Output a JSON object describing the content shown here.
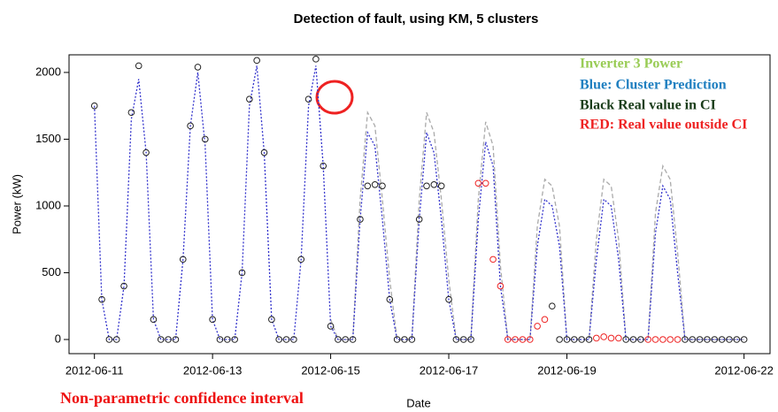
{
  "chart_data": {
    "type": "line",
    "title": "Detection of fault, using KM, 5 clusters",
    "xlabel": "Date",
    "ylabel": "Power (kW)",
    "xlim": [
      -0.43,
      11.44
    ],
    "ylim": [
      -106,
      2132
    ],
    "xticks": [
      {
        "value": 0,
        "label": "2012-06-11"
      },
      {
        "value": 2,
        "label": "2012-06-13"
      },
      {
        "value": 4,
        "label": "2012-06-15"
      },
      {
        "value": 6,
        "label": "2012-06-17"
      },
      {
        "value": 8,
        "label": "2012-06-19"
      },
      {
        "value": 11,
        "label": "2012-06-22"
      }
    ],
    "yticks": [
      0,
      500,
      1000,
      1500,
      2000
    ],
    "annotations": [
      {
        "text": "Inverter 3 Power",
        "color": "#99cc55"
      },
      {
        "text": "Blue: Cluster Prediction",
        "color": "#1f7fc0"
      },
      {
        "text": "Black Real value in CI",
        "color": "#1a3d1a"
      },
      {
        "text": "RED: Real value outside CI",
        "color": "#ee2222"
      },
      {
        "text": "Non-parametric confidence interval",
        "color": "#ee1111"
      }
    ],
    "x": [
      0,
      0.125,
      0.25,
      0.375,
      0.5,
      0.625,
      0.75,
      0.875,
      1,
      1.125,
      1.25,
      1.375,
      1.5,
      1.625,
      1.75,
      1.875,
      2,
      2.125,
      2.25,
      2.375,
      2.5,
      2.625,
      2.75,
      2.875,
      3,
      3.125,
      3.25,
      3.375,
      3.5,
      3.625,
      3.75,
      3.875,
      4,
      4.125,
      4.25,
      4.375,
      4.5,
      4.625,
      4.75,
      4.875,
      5,
      5.125,
      5.25,
      5.375,
      5.5,
      5.625,
      5.75,
      5.875,
      6,
      6.125,
      6.25,
      6.375,
      6.5,
      6.625,
      6.75,
      6.875,
      7,
      7.125,
      7.25,
      7.375,
      7.5,
      7.625,
      7.75,
      7.875,
      8,
      8.125,
      8.25,
      8.375,
      8.5,
      8.625,
      8.75,
      8.875,
      9,
      9.125,
      9.25,
      9.375,
      9.5,
      9.625,
      9.75,
      9.875,
      10,
      10.125,
      10.25,
      10.375,
      10.5,
      10.625,
      10.75,
      10.875,
      11
    ],
    "series": [
      {
        "color": "#aaaaaa",
        "mode": "line",
        "dash": "5,3",
        "values": [
          null,
          null,
          null,
          null,
          null,
          null,
          null,
          null,
          null,
          null,
          null,
          null,
          null,
          null,
          null,
          null,
          null,
          null,
          null,
          null,
          null,
          null,
          null,
          null,
          null,
          null,
          null,
          null,
          null,
          null,
          null,
          null,
          150,
          0,
          0,
          0,
          1050,
          1700,
          1600,
          1050,
          450,
          0,
          0,
          0,
          1050,
          1700,
          1550,
          1050,
          450,
          0,
          0,
          0,
          1050,
          1630,
          1450,
          550,
          0,
          0,
          0,
          0,
          850,
          1200,
          1150,
          850,
          0,
          0,
          0,
          0,
          750,
          1200,
          1150,
          750,
          0,
          0,
          0,
          0,
          950,
          1300,
          1200,
          650,
          0,
          0,
          0,
          0,
          0,
          0,
          0,
          0,
          0
        ]
      },
      {
        "color": "#3333cc",
        "mode": "line",
        "dash": "2,2",
        "values": [
          1750,
          300,
          0,
          0,
          400,
          1650,
          1950,
          1400,
          150,
          0,
          0,
          0,
          600,
          1600,
          2000,
          1450,
          150,
          0,
          0,
          0,
          500,
          1750,
          2050,
          1400,
          150,
          0,
          0,
          0,
          600,
          1750,
          2050,
          1300,
          100,
          0,
          0,
          0,
          900,
          1550,
          1450,
          900,
          300,
          0,
          0,
          0,
          900,
          1550,
          1400,
          900,
          300,
          0,
          0,
          0,
          900,
          1480,
          1300,
          400,
          0,
          0,
          0,
          0,
          700,
          1050,
          1000,
          700,
          0,
          0,
          0,
          0,
          600,
          1050,
          1000,
          600,
          0,
          0,
          0,
          0,
          800,
          1150,
          1050,
          500,
          0,
          0,
          0,
          0,
          0,
          0,
          0,
          0,
          0
        ]
      },
      {
        "color": "#222222",
        "mode": "points",
        "values": [
          1750,
          300,
          0,
          0,
          400,
          1700,
          2050,
          1400,
          150,
          0,
          0,
          0,
          600,
          1600,
          2040,
          1500,
          150,
          0,
          0,
          0,
          500,
          1800,
          2090,
          1400,
          150,
          0,
          0,
          0,
          600,
          1800,
          2100,
          1300,
          100,
          0,
          0,
          0,
          900,
          1150,
          1160,
          1150,
          300,
          0,
          0,
          0,
          900,
          1150,
          1160,
          1150,
          300,
          0,
          0,
          0,
          null,
          null,
          null,
          null,
          null,
          null,
          null,
          null,
          null,
          null,
          250,
          0,
          0,
          0,
          0,
          0,
          null,
          null,
          null,
          null,
          0,
          0,
          0,
          null,
          null,
          null,
          null,
          null,
          0,
          0,
          0,
          0,
          0,
          0,
          0,
          0,
          0
        ]
      },
      {
        "color": "#ee2222",
        "mode": "points",
        "values": [
          null,
          null,
          null,
          null,
          null,
          null,
          null,
          null,
          null,
          null,
          null,
          null,
          null,
          null,
          null,
          null,
          null,
          null,
          null,
          null,
          null,
          null,
          null,
          null,
          null,
          null,
          null,
          null,
          null,
          null,
          null,
          null,
          null,
          null,
          null,
          null,
          null,
          null,
          null,
          null,
          null,
          null,
          null,
          null,
          null,
          null,
          null,
          null,
          null,
          null,
          null,
          null,
          1170,
          1170,
          600,
          400,
          0,
          0,
          0,
          0,
          100,
          150,
          null,
          null,
          null,
          null,
          null,
          null,
          10,
          20,
          10,
          10,
          null,
          null,
          null,
          0,
          0,
          0,
          0,
          0,
          null,
          null,
          null,
          null,
          null,
          null,
          null,
          null,
          null
        ]
      }
    ]
  }
}
